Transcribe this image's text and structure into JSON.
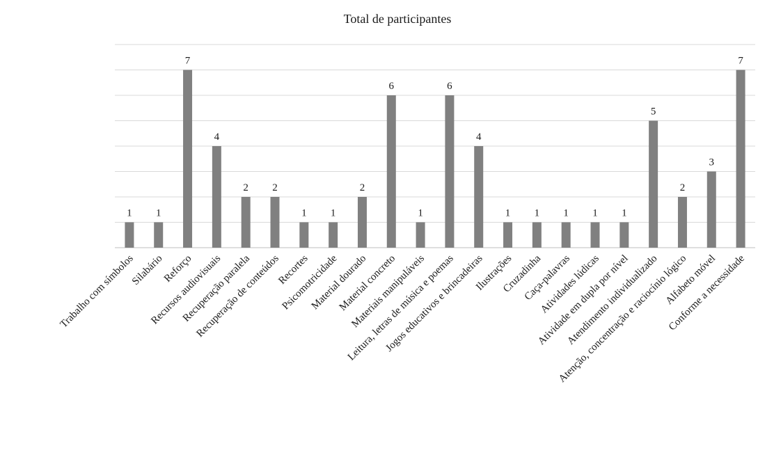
{
  "chart_data": {
    "type": "bar",
    "title": "Total de participantes",
    "xlabel": "",
    "ylabel": "",
    "ylim": [
      0,
      8
    ],
    "grid": true,
    "legend": "none",
    "colors": {
      "bar": "#808080",
      "grid": "#d9d9d9",
      "axis": "#bfbfbf"
    },
    "categories": [
      "Trabalho com símbolos",
      "Silabário",
      "Reforço",
      "Recursos audiovisuais",
      "Recuperação paralela",
      "Recuperação de conteúdos",
      "Recortes",
      "Psicomotricidade",
      "Material dourado",
      "Material concreto",
      "Materiais manipuláveis",
      "Leitura, letras de música e poemas",
      "Jogos educativos e brincadeiras",
      "Ilustrações",
      "Cruzadinha",
      "Caça-palavras",
      "Atividades lúdicas",
      "Atividade em dupla por nível",
      "Atendimento individualizado",
      "Atenção, concentração e raciocínio lógico",
      "Alfabeto móvel",
      "Conforme a necessidade"
    ],
    "values": [
      1,
      1,
      7,
      4,
      2,
      2,
      1,
      1,
      2,
      6,
      1,
      6,
      4,
      1,
      1,
      1,
      1,
      1,
      5,
      2,
      3,
      7
    ]
  }
}
